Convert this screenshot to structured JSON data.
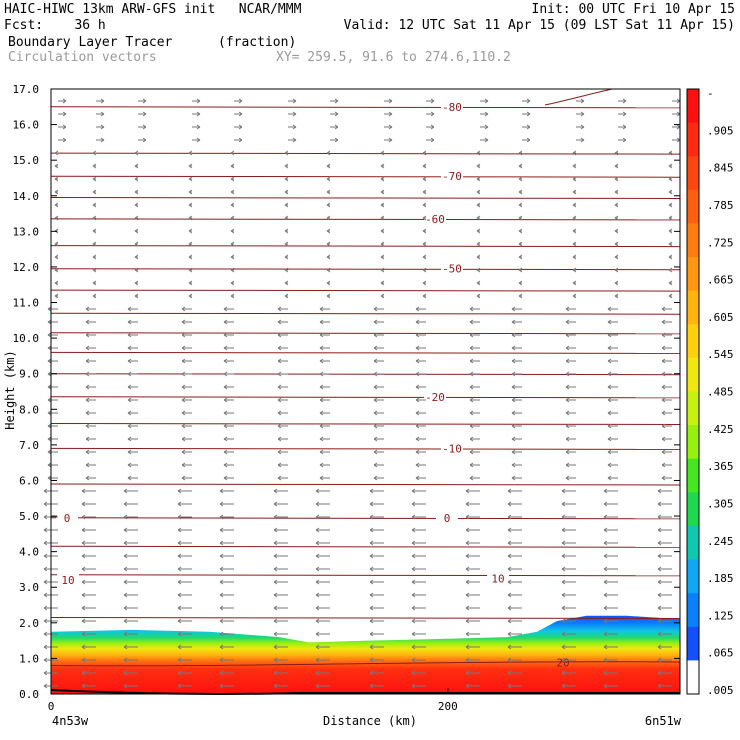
{
  "header": {
    "line1_left": "HAIC-HIWC 13km ARW-GFS init   NCAR/MMM",
    "line1_right": "Init: 00 UTC Fri 10 Apr 15",
    "line2_left": "Fcst:    36 h",
    "line2_right": "Valid: 12 UTC Sat 11 Apr 15 (09 LST Sat 11 Apr 15)",
    "line3_field": "Boundary Layer Tracer",
    "line3_units": "(fraction)",
    "line4_field": "Circulation vectors",
    "line4_xy": "XY= 259.5, 91.6 to 274.6,110.2"
  },
  "chart_data": {
    "type": "heatmap",
    "title": "Boundary Layer Tracer (fraction)",
    "xlabel": "Distance (km)",
    "ylabel": "Height (km)",
    "xlim": [
      0,
      317
    ],
    "ylim": [
      0,
      17
    ],
    "x_ticks": [
      0,
      200
    ],
    "x_tick_labels": [
      "0",
      "200"
    ],
    "x_end_labels": {
      "left": "4n53w",
      "right": "6n51w"
    },
    "y_ticks": [
      0,
      1,
      2,
      3,
      4,
      5,
      6,
      7,
      8,
      9,
      10,
      11,
      12,
      13,
      14,
      15,
      16,
      17
    ],
    "y_tick_labels": [
      "0.0",
      "1.0",
      "2.0",
      "3.0",
      "4.0",
      "5.0",
      "6.0",
      "7.0",
      "8.0",
      "9.0",
      "10.0",
      "11.0",
      "12.0",
      "13.0",
      "14.0",
      "15.0",
      "16.0",
      "17.0"
    ],
    "colorbar": {
      "labels": [
        "-",
        ".905",
        ".845",
        ".785",
        ".725",
        ".665",
        ".605",
        ".545",
        ".485",
        ".425",
        ".365",
        ".305",
        ".245",
        ".185",
        ".125",
        ".065",
        ".005"
      ],
      "colors": [
        "#ff1010",
        "#ff2a10",
        "#ff4510",
        "#ff6010",
        "#ff7c10",
        "#ff9810",
        "#ffb410",
        "#ffd010",
        "#f0e610",
        "#c8f010",
        "#96f010",
        "#46e620",
        "#20d850",
        "#10c8b0",
        "#10a8f0",
        "#0a80ff",
        "#1450ff",
        "#ffffff"
      ]
    },
    "tracer_top_km": [
      [
        0,
        1.75
      ],
      [
        40,
        1.8
      ],
      [
        80,
        1.75
      ],
      [
        115,
        1.6
      ],
      [
        130,
        1.45
      ],
      [
        160,
        1.5
      ],
      [
        200,
        1.55
      ],
      [
        230,
        1.6
      ],
      [
        245,
        1.75
      ],
      [
        255,
        2.05
      ],
      [
        270,
        2.2
      ],
      [
        290,
        2.2
      ],
      [
        317,
        2.1
      ]
    ],
    "temperature_contours_C": [
      {
        "label": "-80",
        "value": -80
      },
      {
        "label": "-70",
        "value": -70
      },
      {
        "label": "-60",
        "value": -60
      },
      {
        "label": "-50",
        "value": -50
      },
      {
        "label": "-20",
        "value": -20
      },
      {
        "label": "-10",
        "value": -10
      },
      {
        "label": "0",
        "value": 0
      },
      {
        "label": "10",
        "value": 10
      },
      {
        "label": "20",
        "value": 20
      }
    ],
    "vectors": "Circulation vectors"
  }
}
